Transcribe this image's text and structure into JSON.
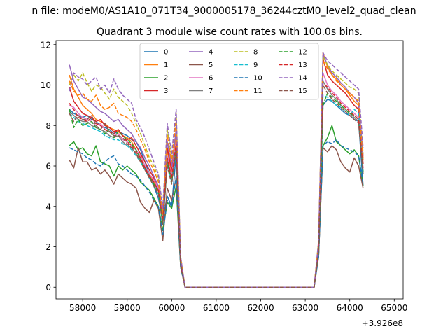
{
  "figure": {
    "suptitle": "n file: modeM0/AS1A10_071T34_9000005178_36244cztM0_level2_quad_clean",
    "title": "Quadrant 3 module wise count rates with 100.0s bins.",
    "x_offset_label": "+3.926e8"
  },
  "chart_data": {
    "type": "line",
    "title": "Quadrant 3 module wise count rates with 100.0s bins.",
    "xlabel": "",
    "ylabel": "",
    "x_offset": 392600000,
    "xlim": [
      57400,
      65200
    ],
    "ylim": [
      -0.58,
      12.2
    ],
    "xticks": [
      58000,
      59000,
      60000,
      61000,
      62000,
      63000,
      64000,
      65000
    ],
    "yticks": [
      0,
      2,
      4,
      6,
      8,
      10,
      12
    ],
    "grid": false,
    "legend": {
      "placement": "upper-center",
      "columns": 4
    },
    "segments": [
      {
        "x_start": 57700,
        "x_end": 60100,
        "step": 100
      },
      {
        "x_start": 60100,
        "x_end": 60300,
        "step": 100
      },
      {
        "x_start": 60300,
        "x_end": 63800,
        "step": 100
      },
      {
        "x_start": 63800,
        "x_end": 64800,
        "step": 100
      }
    ],
    "series": [
      {
        "name": "0",
        "color": "#1f77b4",
        "dash": "solid",
        "values": [
          8.8,
          8.6,
          8.5,
          8.4,
          8.5,
          8.3,
          8.2,
          8.0,
          7.9,
          7.8,
          7.6,
          7.7,
          7.6,
          7.5,
          7.3,
          7.2,
          6.8,
          6.2,
          5.6,
          5.0,
          4.4,
          3.4,
          4.5,
          4.0,
          6.6,
          1.2,
          0.0,
          0.0,
          0.0,
          0.0,
          0.0,
          0.0,
          0.0,
          0.0,
          0.0,
          0.0,
          0.0,
          0.0,
          0.0,
          0.0,
          0.0,
          0.0,
          0.0,
          0.0,
          0.0,
          0.0,
          0.0,
          0.0,
          0.0,
          0.0,
          0.0,
          0.0,
          0.0,
          0.0,
          0.0,
          0.0,
          2.0,
          9.0,
          9.3,
          9.2,
          9.0,
          8.8,
          8.6,
          8.5,
          8.3,
          8.2,
          5.0
        ]
      },
      {
        "name": "1",
        "color": "#ff7f0e",
        "dash": "solid",
        "values": [
          10.5,
          9.8,
          9.4,
          9.0,
          8.8,
          8.6,
          8.3,
          8.2,
          8.1,
          7.9,
          7.8,
          7.7,
          7.5,
          7.4,
          7.2,
          6.8,
          6.5,
          6.0,
          5.6,
          5.2,
          4.8,
          3.5,
          6.8,
          5.6,
          7.5,
          1.3,
          0.0,
          0.0,
          0.0,
          0.0,
          0.0,
          0.0,
          0.0,
          0.0,
          0.0,
          0.0,
          0.0,
          0.0,
          0.0,
          0.0,
          0.0,
          0.0,
          0.0,
          0.0,
          0.0,
          0.0,
          0.0,
          0.0,
          0.0,
          0.0,
          0.0,
          0.0,
          0.0,
          0.0,
          0.0,
          0.0,
          2.1,
          11.6,
          10.9,
          10.5,
          10.3,
          10.0,
          9.8,
          9.5,
          9.2,
          9.0,
          6.4
        ]
      },
      {
        "name": "2",
        "color": "#2ca02c",
        "dash": "solid",
        "values": [
          7.0,
          7.2,
          6.8,
          6.9,
          6.6,
          6.5,
          7.0,
          6.2,
          6.1,
          6.0,
          5.5,
          6.0,
          5.8,
          6.0,
          5.8,
          5.6,
          5.2,
          5.0,
          4.8,
          4.4,
          4.0,
          2.8,
          4.2,
          3.9,
          5.0,
          1.0,
          0.0,
          0.0,
          0.0,
          0.0,
          0.0,
          0.0,
          0.0,
          0.0,
          0.0,
          0.0,
          0.0,
          0.0,
          0.0,
          0.0,
          0.0,
          0.0,
          0.0,
          0.0,
          0.0,
          0.0,
          0.0,
          0.0,
          0.0,
          0.0,
          0.0,
          0.0,
          0.0,
          0.0,
          0.0,
          0.0,
          1.6,
          7.0,
          7.4,
          8.0,
          7.2,
          7.0,
          6.8,
          6.6,
          6.8,
          6.5,
          5.0
        ]
      },
      {
        "name": "3",
        "color": "#d62728",
        "dash": "solid",
        "values": [
          9.9,
          9.2,
          8.9,
          8.6,
          8.5,
          8.4,
          8.2,
          8.3,
          8.0,
          7.9,
          7.7,
          7.8,
          7.5,
          7.3,
          7.4,
          7.0,
          6.6,
          6.2,
          5.8,
          5.4,
          5.0,
          3.4,
          6.9,
          5.8,
          7.0,
          1.3,
          0.0,
          0.0,
          0.0,
          0.0,
          0.0,
          0.0,
          0.0,
          0.0,
          0.0,
          0.0,
          0.0,
          0.0,
          0.0,
          0.0,
          0.0,
          0.0,
          0.0,
          0.0,
          0.0,
          0.0,
          0.0,
          0.0,
          0.0,
          0.0,
          0.0,
          0.0,
          0.0,
          0.0,
          0.0,
          0.0,
          2.0,
          11.3,
          10.5,
          10.2,
          10.0,
          9.8,
          9.6,
          9.3,
          9.0,
          8.8,
          6.1
        ]
      },
      {
        "name": "4",
        "color": "#9467bd",
        "dash": "solid",
        "values": [
          11.0,
          10.2,
          9.8,
          9.4,
          9.3,
          9.1,
          8.9,
          8.7,
          8.6,
          8.4,
          8.2,
          8.3,
          8.0,
          7.8,
          7.6,
          7.2,
          6.9,
          6.4,
          6.0,
          5.5,
          5.0,
          3.6,
          7.2,
          6.0,
          7.8,
          1.4,
          0.0,
          0.0,
          0.0,
          0.0,
          0.0,
          0.0,
          0.0,
          0.0,
          0.0,
          0.0,
          0.0,
          0.0,
          0.0,
          0.0,
          0.0,
          0.0,
          0.0,
          0.0,
          0.0,
          0.0,
          0.0,
          0.0,
          0.0,
          0.0,
          0.0,
          0.0,
          0.0,
          0.0,
          0.0,
          0.0,
          2.2,
          11.5,
          11.0,
          10.6,
          10.4,
          10.1,
          9.9,
          9.6,
          9.4,
          9.1,
          6.5
        ]
      },
      {
        "name": "5",
        "color": "#8c564b",
        "dash": "solid",
        "values": [
          6.3,
          5.9,
          6.9,
          6.2,
          6.2,
          5.8,
          5.9,
          5.6,
          5.8,
          5.5,
          5.1,
          5.6,
          5.4,
          5.2,
          5.1,
          4.9,
          4.2,
          3.9,
          3.7,
          4.3,
          3.9,
          2.3,
          4.9,
          4.3,
          5.4,
          1.0,
          0.0,
          0.0,
          0.0,
          0.0,
          0.0,
          0.0,
          0.0,
          0.0,
          0.0,
          0.0,
          0.0,
          0.0,
          0.0,
          0.0,
          0.0,
          0.0,
          0.0,
          0.0,
          0.0,
          0.0,
          0.0,
          0.0,
          0.0,
          0.0,
          0.0,
          0.0,
          0.0,
          0.0,
          0.0,
          0.0,
          1.5,
          6.9,
          6.7,
          7.0,
          6.8,
          6.2,
          5.9,
          5.7,
          6.4,
          6.0,
          4.9
        ]
      },
      {
        "name": "6",
        "color": "#e377c2",
        "dash": "solid",
        "values": [
          9.0,
          8.9,
          8.6,
          8.4,
          8.3,
          8.2,
          8.0,
          8.1,
          7.8,
          7.7,
          7.5,
          7.6,
          7.3,
          7.2,
          7.0,
          6.8,
          6.5,
          6.0,
          5.6,
          5.3,
          4.9,
          3.3,
          6.5,
          5.5,
          7.2,
          1.2,
          0.0,
          0.0,
          0.0,
          0.0,
          0.0,
          0.0,
          0.0,
          0.0,
          0.0,
          0.0,
          0.0,
          0.0,
          0.0,
          0.0,
          0.0,
          0.0,
          0.0,
          0.0,
          0.0,
          0.0,
          0.0,
          0.0,
          0.0,
          0.0,
          0.0,
          0.0,
          0.0,
          0.0,
          0.0,
          0.0,
          1.9,
          10.6,
          10.0,
          9.7,
          9.5,
          9.2,
          9.0,
          8.8,
          8.6,
          8.4,
          5.9
        ]
      },
      {
        "name": "7",
        "color": "#7f7f7f",
        "dash": "solid",
        "values": [
          8.7,
          8.5,
          8.3,
          8.2,
          8.2,
          8.0,
          7.9,
          7.8,
          7.7,
          7.5,
          7.4,
          7.5,
          7.2,
          7.0,
          6.9,
          6.6,
          6.3,
          5.9,
          5.5,
          5.1,
          4.8,
          3.2,
          6.3,
          5.3,
          7.0,
          1.2,
          0.0,
          0.0,
          0.0,
          0.0,
          0.0,
          0.0,
          0.0,
          0.0,
          0.0,
          0.0,
          0.0,
          0.0,
          0.0,
          0.0,
          0.0,
          0.0,
          0.0,
          0.0,
          0.0,
          0.0,
          0.0,
          0.0,
          0.0,
          0.0,
          0.0,
          0.0,
          0.0,
          0.0,
          0.0,
          0.0,
          1.8,
          10.2,
          9.8,
          9.5,
          9.3,
          9.0,
          8.8,
          8.6,
          8.4,
          8.2,
          5.7
        ]
      },
      {
        "name": "8",
        "color": "#bcbd22",
        "dash": "dashed",
        "values": [
          10.0,
          10.5,
          10.2,
          10.6,
          10.1,
          9.7,
          10.0,
          9.9,
          9.6,
          9.3,
          9.8,
          9.4,
          9.2,
          9.0,
          8.6,
          8.1,
          7.6,
          7.0,
          6.4,
          6.0,
          5.4,
          3.7,
          7.8,
          6.4,
          8.6,
          1.5,
          0.0,
          0.0,
          0.0,
          0.0,
          0.0,
          0.0,
          0.0,
          0.0,
          0.0,
          0.0,
          0.0,
          0.0,
          0.0,
          0.0,
          0.0,
          0.0,
          0.0,
          0.0,
          0.0,
          0.0,
          0.0,
          0.0,
          0.0,
          0.0,
          0.0,
          0.0,
          0.0,
          0.0,
          0.0,
          0.0,
          2.3,
          11.4,
          11.0,
          10.7,
          10.5,
          10.3,
          10.1,
          9.9,
          9.8,
          9.6,
          6.6
        ]
      },
      {
        "name": "9",
        "color": "#17becf",
        "dash": "dashed",
        "values": [
          8.6,
          8.4,
          8.2,
          8.1,
          8.0,
          7.9,
          7.8,
          7.7,
          7.5,
          7.4,
          7.3,
          7.3,
          7.1,
          7.0,
          6.8,
          6.5,
          6.2,
          5.8,
          5.4,
          5.0,
          4.6,
          3.1,
          6.1,
          5.2,
          6.8,
          1.2,
          0.0,
          0.0,
          0.0,
          0.0,
          0.0,
          0.0,
          0.0,
          0.0,
          0.0,
          0.0,
          0.0,
          0.0,
          0.0,
          0.0,
          0.0,
          0.0,
          0.0,
          0.0,
          0.0,
          0.0,
          0.0,
          0.0,
          0.0,
          0.0,
          0.0,
          0.0,
          0.0,
          0.0,
          0.0,
          0.0,
          1.7,
          9.5,
          9.4,
          9.2,
          9.0,
          8.9,
          8.7,
          8.5,
          8.8,
          8.6,
          5.6
        ]
      },
      {
        "name": "10",
        "color": "#1f77b4",
        "dash": "dashed",
        "values": [
          6.9,
          6.8,
          6.7,
          6.6,
          6.4,
          6.3,
          6.1,
          6.0,
          6.2,
          6.4,
          6.5,
          6.1,
          6.0,
          5.8,
          5.6,
          5.5,
          5.3,
          5.0,
          4.7,
          4.3,
          4.0,
          2.6,
          4.3,
          4.0,
          5.5,
          1.0,
          0.0,
          0.0,
          0.0,
          0.0,
          0.0,
          0.0,
          0.0,
          0.0,
          0.0,
          0.0,
          0.0,
          0.0,
          0.0,
          0.0,
          0.0,
          0.0,
          0.0,
          0.0,
          0.0,
          0.0,
          0.0,
          0.0,
          0.0,
          0.0,
          0.0,
          0.0,
          0.0,
          0.0,
          0.0,
          0.0,
          1.5,
          7.0,
          7.2,
          7.1,
          7.3,
          7.0,
          6.9,
          6.8,
          6.7,
          6.5,
          5.1
        ]
      },
      {
        "name": "11",
        "color": "#ff7f0e",
        "dash": "dashed",
        "values": [
          10.2,
          9.7,
          9.5,
          9.6,
          9.3,
          9.2,
          9.5,
          9.0,
          8.8,
          8.9,
          9.1,
          8.6,
          8.5,
          8.4,
          8.2,
          7.8,
          7.3,
          6.8,
          6.2,
          5.8,
          5.2,
          3.6,
          7.5,
          6.2,
          8.3,
          1.4,
          0.0,
          0.0,
          0.0,
          0.0,
          0.0,
          0.0,
          0.0,
          0.0,
          0.0,
          0.0,
          0.0,
          0.0,
          0.0,
          0.0,
          0.0,
          0.0,
          0.0,
          0.0,
          0.0,
          0.0,
          0.0,
          0.0,
          0.0,
          0.0,
          0.0,
          0.0,
          0.0,
          0.0,
          0.0,
          0.0,
          2.2,
          11.2,
          10.8,
          10.5,
          10.2,
          10.0,
          9.8,
          9.6,
          9.4,
          9.2,
          6.3
        ]
      },
      {
        "name": "12",
        "color": "#2ca02c",
        "dash": "dashed",
        "values": [
          8.8,
          7.9,
          8.3,
          8.0,
          8.1,
          8.2,
          7.9,
          7.8,
          7.6,
          7.8,
          7.4,
          7.7,
          7.5,
          7.3,
          7.1,
          6.8,
          6.3,
          5.9,
          5.5,
          5.1,
          4.7,
          3.2,
          6.2,
          5.2,
          6.9,
          1.2,
          0.0,
          0.0,
          0.0,
          0.0,
          0.0,
          0.0,
          0.0,
          0.0,
          0.0,
          0.0,
          0.0,
          0.0,
          0.0,
          0.0,
          0.0,
          0.0,
          0.0,
          0.0,
          0.0,
          0.0,
          0.0,
          0.0,
          0.0,
          0.0,
          0.0,
          0.0,
          0.0,
          0.0,
          0.0,
          0.0,
          1.8,
          9.0,
          9.6,
          9.4,
          9.2,
          9.0,
          8.8,
          8.6,
          8.5,
          8.3,
          5.7
        ]
      },
      {
        "name": "13",
        "color": "#d62728",
        "dash": "dashed",
        "values": [
          9.1,
          8.8,
          8.4,
          8.3,
          8.2,
          8.4,
          8.1,
          8.0,
          7.8,
          7.7,
          7.6,
          7.8,
          7.5,
          7.2,
          7.0,
          6.7,
          6.4,
          5.9,
          5.5,
          5.2,
          4.8,
          3.3,
          6.4,
          5.4,
          7.1,
          1.2,
          0.0,
          0.0,
          0.0,
          0.0,
          0.0,
          0.0,
          0.0,
          0.0,
          0.0,
          0.0,
          0.0,
          0.0,
          0.0,
          0.0,
          0.0,
          0.0,
          0.0,
          0.0,
          0.0,
          0.0,
          0.0,
          0.0,
          0.0,
          0.0,
          0.0,
          0.0,
          0.0,
          0.0,
          0.0,
          0.0,
          1.9,
          10.1,
          9.9,
          9.6,
          9.4,
          9.1,
          8.9,
          8.7,
          8.5,
          8.3,
          5.8
        ]
      },
      {
        "name": "14",
        "color": "#9467bd",
        "dash": "dashed",
        "values": [
          9.7,
          10.6,
          10.4,
          10.3,
          10.0,
          10.2,
          10.4,
          9.8,
          10.0,
          9.6,
          10.3,
          9.8,
          9.5,
          9.3,
          9.1,
          8.3,
          7.9,
          7.4,
          6.8,
          6.2,
          5.6,
          3.9,
          8.1,
          6.6,
          8.8,
          1.5,
          0.0,
          0.0,
          0.0,
          0.0,
          0.0,
          0.0,
          0.0,
          0.0,
          0.0,
          0.0,
          0.0,
          0.0,
          0.0,
          0.0,
          0.0,
          0.0,
          0.0,
          0.0,
          0.0,
          0.0,
          0.0,
          0.0,
          0.0,
          0.0,
          0.0,
          0.0,
          0.0,
          0.0,
          0.0,
          0.0,
          2.3,
          11.6,
          11.2,
          11.0,
          10.8,
          10.6,
          10.4,
          10.2,
          10.0,
          9.8,
          6.9
        ]
      },
      {
        "name": "15",
        "color": "#8c564b",
        "dash": "dashed",
        "values": [
          8.6,
          8.2,
          8.5,
          8.3,
          8.3,
          8.5,
          8.0,
          7.8,
          8.1,
          7.7,
          7.5,
          7.5,
          7.4,
          7.1,
          6.9,
          6.6,
          6.2,
          5.8,
          5.4,
          5.0,
          4.6,
          3.1,
          6.0,
          5.1,
          6.8,
          1.2,
          0.0,
          0.0,
          0.0,
          0.0,
          0.0,
          0.0,
          0.0,
          0.0,
          0.0,
          0.0,
          0.0,
          0.0,
          0.0,
          0.0,
          0.0,
          0.0,
          0.0,
          0.0,
          0.0,
          0.0,
          0.0,
          0.0,
          0.0,
          0.0,
          0.0,
          0.0,
          0.0,
          0.0,
          0.0,
          0.0,
          1.8,
          10.0,
          9.6,
          9.3,
          9.1,
          8.9,
          8.7,
          8.5,
          8.3,
          8.1,
          5.6
        ]
      }
    ]
  }
}
